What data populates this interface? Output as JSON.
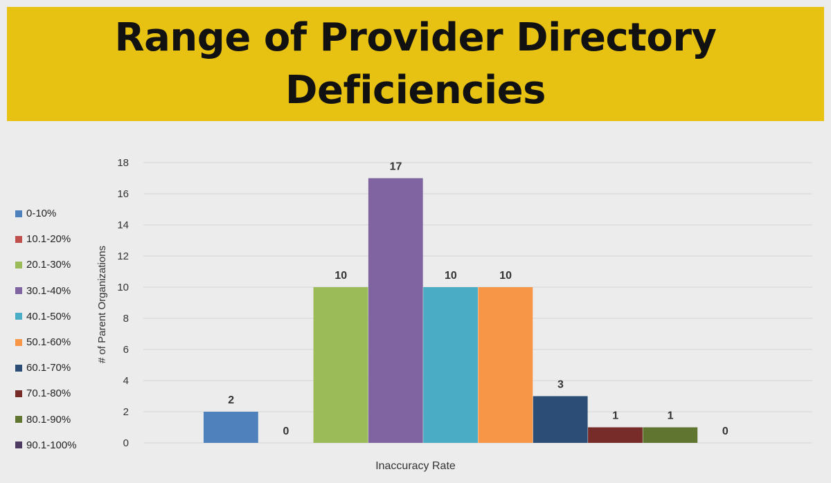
{
  "title": {
    "line1": "Range of Provider Directory",
    "line2": "Deficiencies"
  },
  "chart_data": {
    "type": "bar",
    "title": "Range of Provider Directory Deficiencies",
    "xlabel": "Inaccuracy Rate",
    "ylabel": "# of Parent Organizations",
    "ylim": [
      0,
      18
    ],
    "yticks": [
      0,
      2,
      4,
      6,
      8,
      10,
      12,
      14,
      16,
      18
    ],
    "legend_position": "left",
    "series": [
      {
        "name": "0-10%",
        "value": 2,
        "color": "#4f81bd"
      },
      {
        "name": "10.1-20%",
        "value": 0,
        "color": "#c0504d"
      },
      {
        "name": "20.1-30%",
        "value": 10,
        "color": "#9bbb59"
      },
      {
        "name": "30.1-40%",
        "value": 17,
        "color": "#8064a2"
      },
      {
        "name": "40.1-50%",
        "value": 10,
        "color": "#4bacc6"
      },
      {
        "name": "50.1-60%",
        "value": 10,
        "color": "#f79646"
      },
      {
        "name": "60.1-70%",
        "value": 3,
        "color": "#2c4d75"
      },
      {
        "name": "70.1-80%",
        "value": 1,
        "color": "#772c2a"
      },
      {
        "name": "80.1-90%",
        "value": 1,
        "color": "#5f7530"
      },
      {
        "name": "90.1-100%",
        "value": 0,
        "color": "#4d3b62"
      }
    ]
  }
}
